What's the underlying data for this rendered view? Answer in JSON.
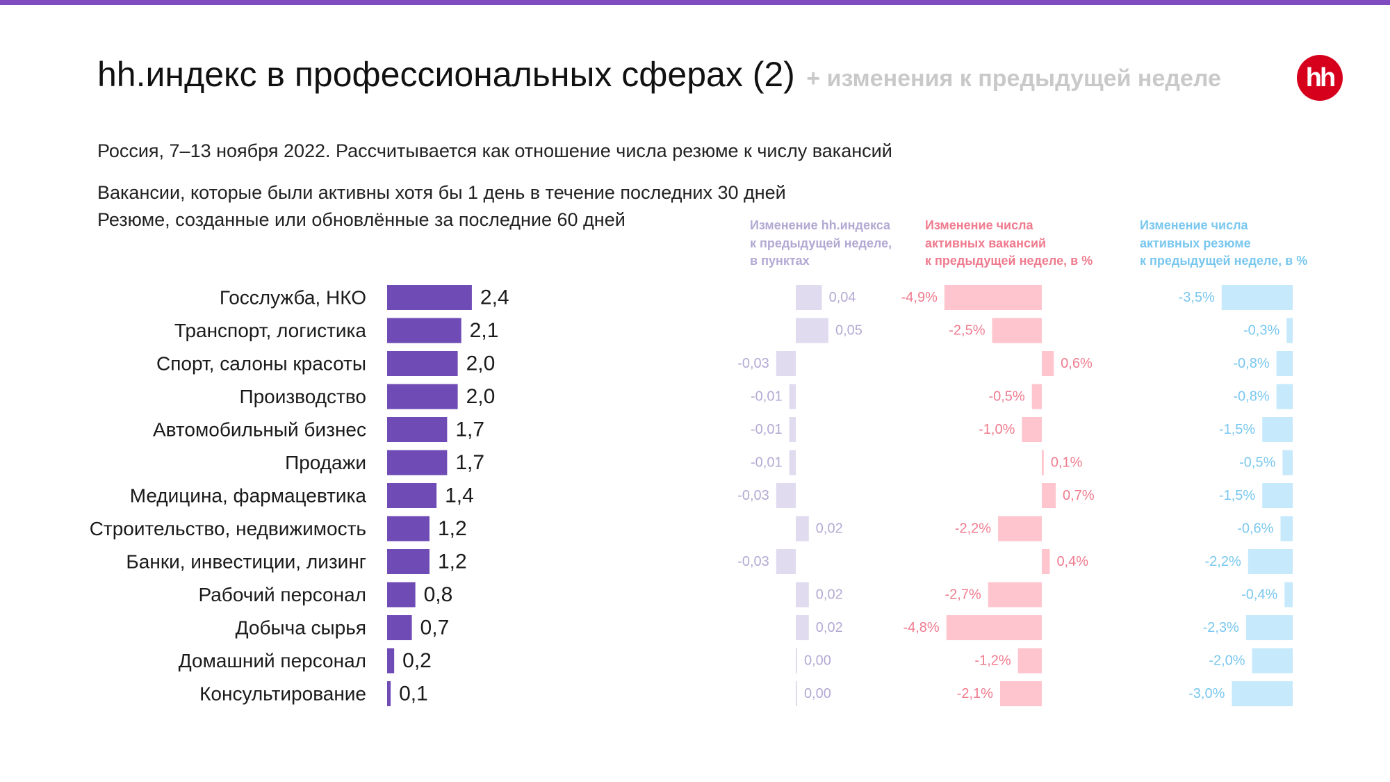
{
  "header": {
    "title": "hh.индекс в профессиональных сферах (2)",
    "title_suffix": "+ изменения к предыдущей неделе",
    "logo_text": "hh"
  },
  "subtitles": {
    "line1": "Россия, 7–13 ноября 2022. Рассчитывается как отношение числа резюме к числу вакансий",
    "line2": "Вакансии, которые были активны хотя бы 1 день в течение последних 30 дней",
    "line3": "Резюме, созданные или обновлённые за последние 60 дней"
  },
  "panel_titles": {
    "index_change": [
      "Изменение hh.индекса",
      "к предыдущей неделе,",
      "в пунктах"
    ],
    "vacancies_change": [
      "Изменение числа",
      "активных вакансий",
      "к предыдущей неделе, в %"
    ],
    "resumes_change": [
      "Изменение числа",
      "активных резюме",
      "к предыдущей неделе, в %"
    ]
  },
  "colors": {
    "top_bar": "#7f4bbf",
    "index_bar": "#6e4bb5",
    "index_change_bar": "#e0dbef",
    "index_change_text": "#b3a9d3",
    "vacancies_bar": "#ffc5ce",
    "vacancies_text": "#ef7b8e",
    "resumes_bar": "#c6e9fb",
    "resumes_text": "#79c7ef",
    "logo": "#d6001c"
  },
  "chart_data": [
    {
      "type": "bar",
      "orientation": "horizontal",
      "categories": [
        "Госслужба, НКО",
        "Транспорт, логистика",
        "Спорт, салоны красоты",
        "Производство",
        "Автомобильный бизнес",
        "Продажи",
        "Медицина, фармацевтика",
        "Строительство, недвижимость",
        "Банки, инвестиции, лизинг",
        "Рабочий персонал",
        "Добыча сырья",
        "Домашний персонал",
        "Консультирование"
      ],
      "values": [
        2.4,
        2.1,
        2.0,
        2.0,
        1.7,
        1.7,
        1.4,
        1.2,
        1.2,
        0.8,
        0.7,
        0.2,
        0.1
      ],
      "value_labels": [
        "2,4",
        "2,1",
        "2,0",
        "2,0",
        "1,7",
        "1,7",
        "1,4",
        "1,2",
        "1,2",
        "0,8",
        "0,7",
        "0,2",
        "0,1"
      ]
    },
    {
      "type": "bar",
      "orientation": "horizontal",
      "title": "Изменение hh.индекса к предыдущей неделе, в пунктах",
      "values": [
        0.04,
        0.05,
        -0.03,
        -0.01,
        -0.01,
        -0.01,
        -0.03,
        0.02,
        -0.03,
        0.02,
        0.02,
        0.0,
        0.0
      ],
      "value_labels": [
        "0,04",
        "0,05",
        "-0,03",
        "-0,01",
        "-0,01",
        "-0,01",
        "-0,03",
        "0,02",
        "-0,03",
        "0,02",
        "0,02",
        "0,00",
        "0,00"
      ]
    },
    {
      "type": "bar",
      "orientation": "horizontal",
      "title": "Изменение числа активных вакансий к предыдущей неделе, в %",
      "values": [
        -4.9,
        -2.5,
        0.6,
        -0.5,
        -1.0,
        0.1,
        0.7,
        -2.2,
        0.4,
        -2.7,
        -4.8,
        -1.2,
        -2.1
      ],
      "value_labels": [
        "-4,9%",
        "-2,5%",
        "0,6%",
        "-0,5%",
        "-1,0%",
        "0,1%",
        "0,7%",
        "-2,2%",
        "0,4%",
        "-2,7%",
        "-4,8%",
        "-1,2%",
        "-2,1%"
      ]
    },
    {
      "type": "bar",
      "orientation": "horizontal",
      "title": "Изменение числа активных резюме к предыдущей неделе, в %",
      "values": [
        -3.5,
        -0.3,
        -0.8,
        -0.8,
        -1.5,
        -0.5,
        -1.5,
        -0.6,
        -2.2,
        -0.4,
        -2.3,
        -2.0,
        -3.0
      ],
      "value_labels": [
        "-3,5%",
        "-0,3%",
        "-0,8%",
        "-0,8%",
        "-1,5%",
        "-0,5%",
        "-1,5%",
        "-0,6%",
        "-2,2%",
        "-0,4%",
        "-2,3%",
        "-2,0%",
        "-3,0%"
      ]
    }
  ]
}
